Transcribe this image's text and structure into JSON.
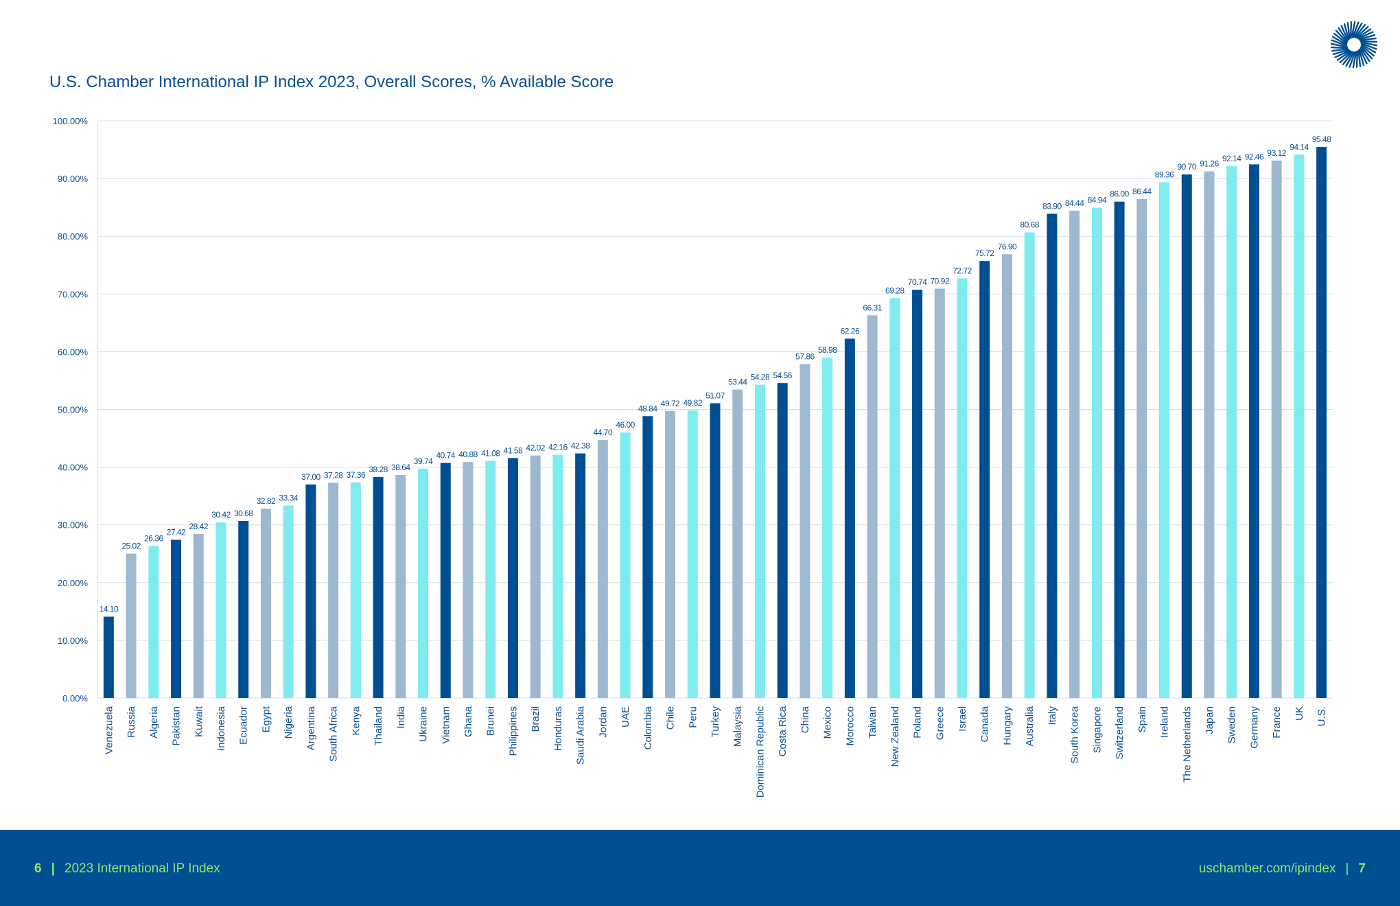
{
  "chart_data": {
    "type": "bar",
    "title": "U.S. Chamber International IP Index 2023, Overall Scores, % Available Score",
    "ylim": [
      0,
      100
    ],
    "yticks": [
      "0.00%",
      "10.00%",
      "20.00%",
      "30.00%",
      "40.00%",
      "50.00%",
      "60.00%",
      "70.00%",
      "80.00%",
      "90.00%",
      "100.00%"
    ],
    "grid": true,
    "colors": [
      "#004f92",
      "#9fb8d2",
      "#7eecef"
    ],
    "categories": [
      "Venezuela",
      "Russia",
      "Algeria",
      "Pakistan",
      "Kuwait",
      "Indonesia",
      "Ecuador",
      "Egypt",
      "Nigeria",
      "Argentina",
      "South Africa",
      "Kenya",
      "Thailand",
      "India",
      "Ukraine",
      "Vietnam",
      "Ghana",
      "Brunei",
      "Philippines",
      "Brazil",
      "Honduras",
      "Saudi Arabia",
      "Jordan",
      "UAE",
      "Colombia",
      "Chile",
      "Peru",
      "Turkey",
      "Malaysia",
      "Dominican Republic",
      "Costa Rica",
      "China",
      "Mexico",
      "Morocco",
      "Taiwan",
      "New Zealand",
      "Poland",
      "Greece",
      "Israel",
      "Canada",
      "Hungary",
      "Australia",
      "Italy",
      "South Korea",
      "Singapore",
      "Switzerland",
      "Spain",
      "Ireland",
      "The Netherlands",
      "Japan",
      "Sweden",
      "Germany",
      "France",
      "UK",
      "U.S."
    ],
    "values": [
      14.1,
      25.02,
      26.36,
      27.42,
      28.42,
      30.42,
      30.68,
      32.82,
      33.34,
      37.0,
      37.28,
      37.36,
      38.28,
      38.64,
      39.74,
      40.74,
      40.88,
      41.08,
      41.58,
      42.02,
      42.16,
      42.38,
      44.7,
      46.0,
      48.84,
      49.72,
      49.82,
      51.07,
      53.44,
      54.28,
      54.56,
      57.86,
      58.98,
      62.26,
      66.31,
      69.28,
      70.74,
      70.92,
      72.72,
      75.72,
      76.9,
      80.68,
      83.9,
      84.44,
      84.94,
      86.0,
      86.44,
      89.36,
      90.7,
      91.26,
      92.14,
      92.46,
      93.12,
      94.14,
      95.48
    ],
    "labels": [
      "14.10",
      "25.02",
      "26.36",
      "27.42",
      "28.42",
      "30.42",
      "30.68",
      "32.82",
      "33.34",
      "37.00",
      "37.28",
      "37.36",
      "38.28",
      "38.64",
      "39.74",
      "40.74",
      "40.88",
      "41.08",
      "41.58",
      "42.02",
      "42.16",
      "42.38",
      "44.70",
      "46.00",
      "48.84",
      "49.72",
      "49.82",
      "51.07",
      "53.44",
      "54.28",
      "54.56",
      "57.86",
      "58.98",
      "62.26",
      "66.31",
      "69.28",
      "70.74",
      "70.92",
      "72.72",
      "75.72",
      "76.90",
      "80.68",
      "83.90",
      "84.44",
      "84.94",
      "86.00",
      "86.44",
      "89.36",
      "90.70",
      "91.26",
      "92.14",
      "92.46",
      "93.12",
      "94.14",
      "95.48"
    ],
    "color_index": [
      0,
      1,
      2,
      0,
      1,
      2,
      0,
      1,
      2,
      0,
      1,
      2,
      0,
      1,
      2,
      0,
      1,
      2,
      0,
      1,
      2,
      0,
      1,
      2,
      0,
      1,
      2,
      0,
      1,
      2,
      0,
      1,
      2,
      0,
      1,
      2,
      0,
      1,
      2,
      0,
      1,
      2,
      0,
      1,
      2,
      0,
      1,
      2,
      0,
      1,
      2,
      0,
      1,
      2,
      0
    ]
  },
  "logo": {
    "icon": "sunburst-logo-icon",
    "color": "#004f92"
  },
  "footer": {
    "page_left": "6",
    "separator": "|",
    "report_name": "2023 International IP Index",
    "url": "uschamber.com/ipindex",
    "page_right": "7",
    "background": "#004f92",
    "text_color": "#92e46a"
  }
}
